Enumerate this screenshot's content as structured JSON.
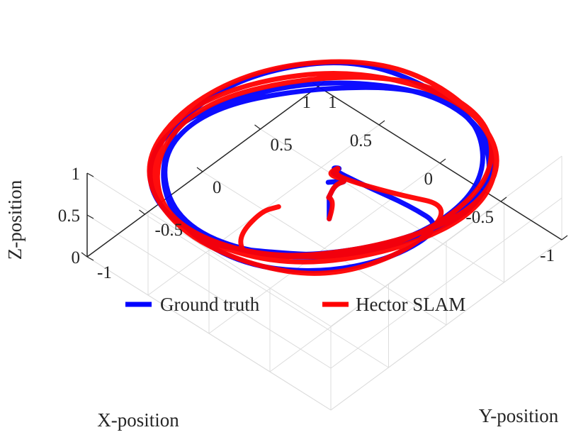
{
  "chart_data": {
    "type": "line",
    "projection": "3d",
    "title": "",
    "xlabel": "X-position",
    "ylabel": "Y-position",
    "zlabel": "Z-position",
    "xlim": [
      -1,
      1
    ],
    "ylim": [
      -1,
      1
    ],
    "zlim": [
      0,
      1
    ],
    "x_ticks": [
      "-1",
      "-0.5",
      "0",
      "0.5",
      "1"
    ],
    "y_ticks": [
      "-1",
      "-0.5",
      "0",
      "0.5",
      "1"
    ],
    "z_ticks": [
      "0",
      "0.5",
      "1"
    ],
    "grid": true,
    "legend_position": "center, horizontal, inside axes",
    "series": [
      {
        "name": "Ground truth",
        "color": "#0000ff",
        "x": [
          -0.02,
          -0.02,
          -0.02,
          -0.05,
          -0.04,
          -0.1,
          -0.02,
          -0.12,
          -0.02,
          -0.1,
          -0.02,
          -0.3,
          -0.6,
          -0.88,
          -0.85,
          -0.6,
          -0.2,
          0.3,
          0.7,
          0.95,
          0.9,
          0.55,
          0.0,
          -0.55,
          -0.92,
          -0.85,
          -0.5,
          0.05,
          0.6,
          0.93,
          0.85,
          0.5,
          -0.1,
          -0.7,
          -0.9,
          -0.75,
          -0.3,
          0.3,
          0.8,
          0.88,
          0.55,
          0.05,
          -0.4,
          -0.8,
          -0.85,
          -0.6,
          -0.2,
          0.05,
          0.08
        ],
        "y": [
          0.02,
          0.02,
          0.02,
          -0.02,
          0.05,
          0.1,
          -0.05,
          0.1,
          0.02,
          0.05,
          0.02,
          0.05,
          0.1,
          0.1,
          -0.3,
          -0.7,
          -0.95,
          -0.95,
          -0.7,
          -0.25,
          0.3,
          0.8,
          0.95,
          0.85,
          0.45,
          -0.1,
          -0.65,
          -0.95,
          -0.9,
          -0.5,
          0.05,
          0.6,
          0.95,
          0.8,
          0.3,
          -0.25,
          -0.8,
          -0.95,
          -0.6,
          -0.1,
          0.45,
          0.9,
          0.92,
          0.55,
          0.0,
          -0.5,
          -0.8,
          -0.95,
          -0.92
        ],
        "z": [
          0.35,
          0.5,
          0.62,
          0.66,
          0.75,
          0.8,
          0.85,
          0.82,
          0.9,
          1.0,
          0.96,
          0.96,
          0.96,
          0.96,
          0.96,
          0.96,
          0.96,
          0.96,
          0.96,
          0.96,
          0.96,
          0.96,
          0.96,
          0.96,
          0.96,
          0.96,
          0.96,
          0.96,
          0.96,
          0.96,
          0.96,
          0.96,
          0.96,
          0.96,
          0.96,
          0.96,
          0.96,
          0.96,
          0.96,
          0.96,
          0.96,
          0.96,
          0.96,
          0.96,
          0.96,
          0.96,
          0.96,
          0.97,
          1.0
        ]
      },
      {
        "name": "Hector SLAM",
        "color": "#ff0000",
        "x": [
          -0.02,
          -0.03,
          -0.02,
          -0.05,
          -0.04,
          -0.1,
          -0.02,
          -0.08,
          -0.1,
          -0.22,
          -0.5,
          -0.82,
          -0.9,
          -0.7,
          -0.25,
          0.3,
          0.8,
          0.98,
          0.85,
          0.4,
          -0.15,
          -0.7,
          -0.97,
          -0.85,
          -0.45,
          0.15,
          0.65,
          0.96,
          0.85,
          0.45,
          -0.2,
          -0.75,
          -0.95,
          -0.75,
          -0.3,
          0.35,
          0.8,
          0.92,
          0.6,
          0.1,
          -0.45,
          -0.82,
          -0.88,
          -0.7,
          -0.4,
          -0.2,
          -0.05,
          0.0,
          -0.05
        ],
        "y": [
          0.02,
          0.05,
          0.02,
          -0.02,
          0.05,
          0.1,
          0.0,
          0.05,
          -0.02,
          0.0,
          0.1,
          0.25,
          -0.2,
          -0.7,
          -0.95,
          -1.0,
          -0.75,
          -0.2,
          0.4,
          0.88,
          0.98,
          0.8,
          0.35,
          -0.25,
          -0.8,
          -1.0,
          -0.85,
          -0.35,
          0.2,
          0.72,
          0.97,
          0.78,
          0.3,
          -0.3,
          -0.85,
          -1.0,
          -0.65,
          -0.1,
          0.5,
          0.92,
          0.95,
          0.6,
          0.05,
          -0.45,
          -0.72,
          -0.9,
          -0.8,
          -0.55,
          -0.45
        ],
        "z": [
          0.35,
          0.5,
          0.62,
          0.66,
          0.75,
          0.8,
          0.9,
          1.0,
          1.0,
          1.0,
          1.0,
          1.0,
          1.0,
          1.0,
          1.0,
          1.0,
          1.0,
          1.0,
          1.0,
          1.0,
          1.0,
          1.0,
          1.0,
          1.0,
          1.0,
          1.0,
          1.0,
          1.0,
          1.0,
          1.0,
          1.0,
          1.0,
          1.0,
          1.0,
          1.0,
          1.0,
          1.0,
          1.0,
          1.0,
          1.0,
          1.0,
          1.0,
          1.0,
          1.0,
          1.0,
          1.0,
          1.0,
          1.0,
          1.0
        ]
      }
    ]
  }
}
